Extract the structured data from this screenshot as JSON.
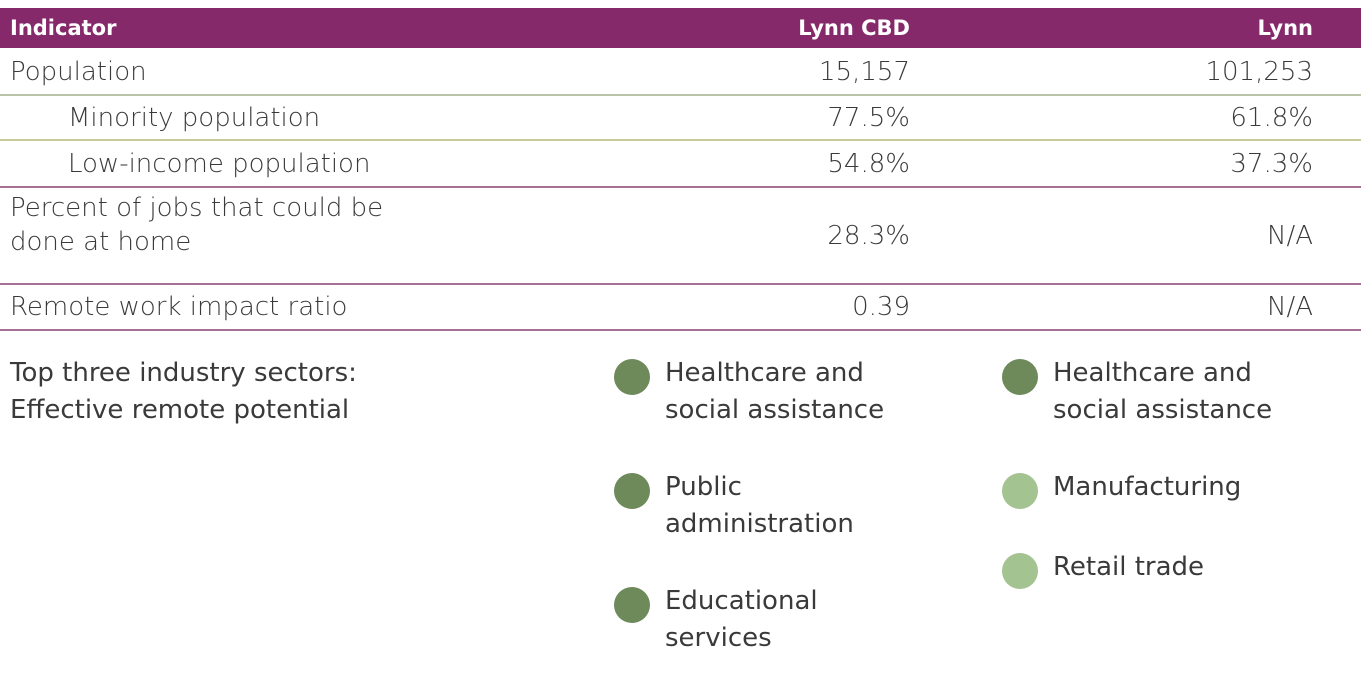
{
  "table": {
    "header": [
      "Indicator",
      "Lynn CBD",
      "Lynn"
    ],
    "rows": [
      {
        "label": "Population",
        "indent": false,
        "values": [
          "15,157",
          "101,253"
        ]
      },
      {
        "label": "Minority population",
        "indent": true,
        "values": [
          "77.5%",
          "61.8%"
        ]
      },
      {
        "label": "Low-income population",
        "indent": true,
        "values": [
          "54.8%",
          "37.3%"
        ]
      },
      {
        "label": "Percent of jobs that could be done at home",
        "indent": false,
        "values": [
          "28.3%",
          "N/A"
        ]
      },
      {
        "label": "Remote work impact ratio",
        "indent": false,
        "values": [
          "0.39",
          "N/A"
        ]
      }
    ],
    "sectors": {
      "label": "Top three industry sectors: Effective remote potential",
      "columns": [
        [
          {
            "name": "Healthcare and social assistance",
            "color": "#6f8a5a"
          },
          {
            "name": "Public administration",
            "color": "#6f8a5a"
          },
          {
            "name": "Educational services",
            "color": "#6f8a5a"
          }
        ],
        [
          {
            "name": "Healthcare and social assistance",
            "color": "#6f8a5a"
          },
          {
            "name": "Manufacturing",
            "color": "#a3c490"
          },
          {
            "name": "Retail trade",
            "color": "#a3c490"
          }
        ]
      ]
    }
  }
}
